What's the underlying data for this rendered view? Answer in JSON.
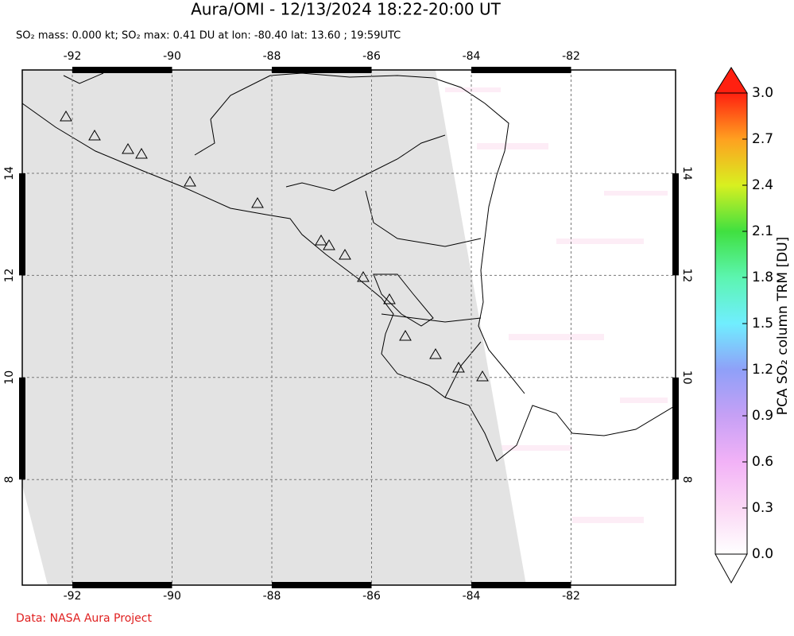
{
  "header": {
    "title": "Aura/OMI - 12/13/2024 18:22-20:00 UT",
    "subtitle": "SO₂ mass: 0.000 kt; SO₂ max: 0.41 DU at lon: -80.40 lat: 13.60 ; 19:59UTC"
  },
  "map": {
    "lon_ticks": [
      -92,
      -90,
      -88,
      -86,
      -84,
      -82
    ],
    "lat_ticks": [
      14,
      12,
      10,
      8
    ]
  },
  "colorbar": {
    "title": "PCA SO₂ column TRM [DU]",
    "labels": [
      "0.0",
      "0.3",
      "0.6",
      "0.9",
      "1.2",
      "1.5",
      "1.8",
      "2.1",
      "2.4",
      "2.7",
      "3.0"
    ]
  },
  "footer": {
    "credit": "Data: NASA Aura Project"
  }
}
